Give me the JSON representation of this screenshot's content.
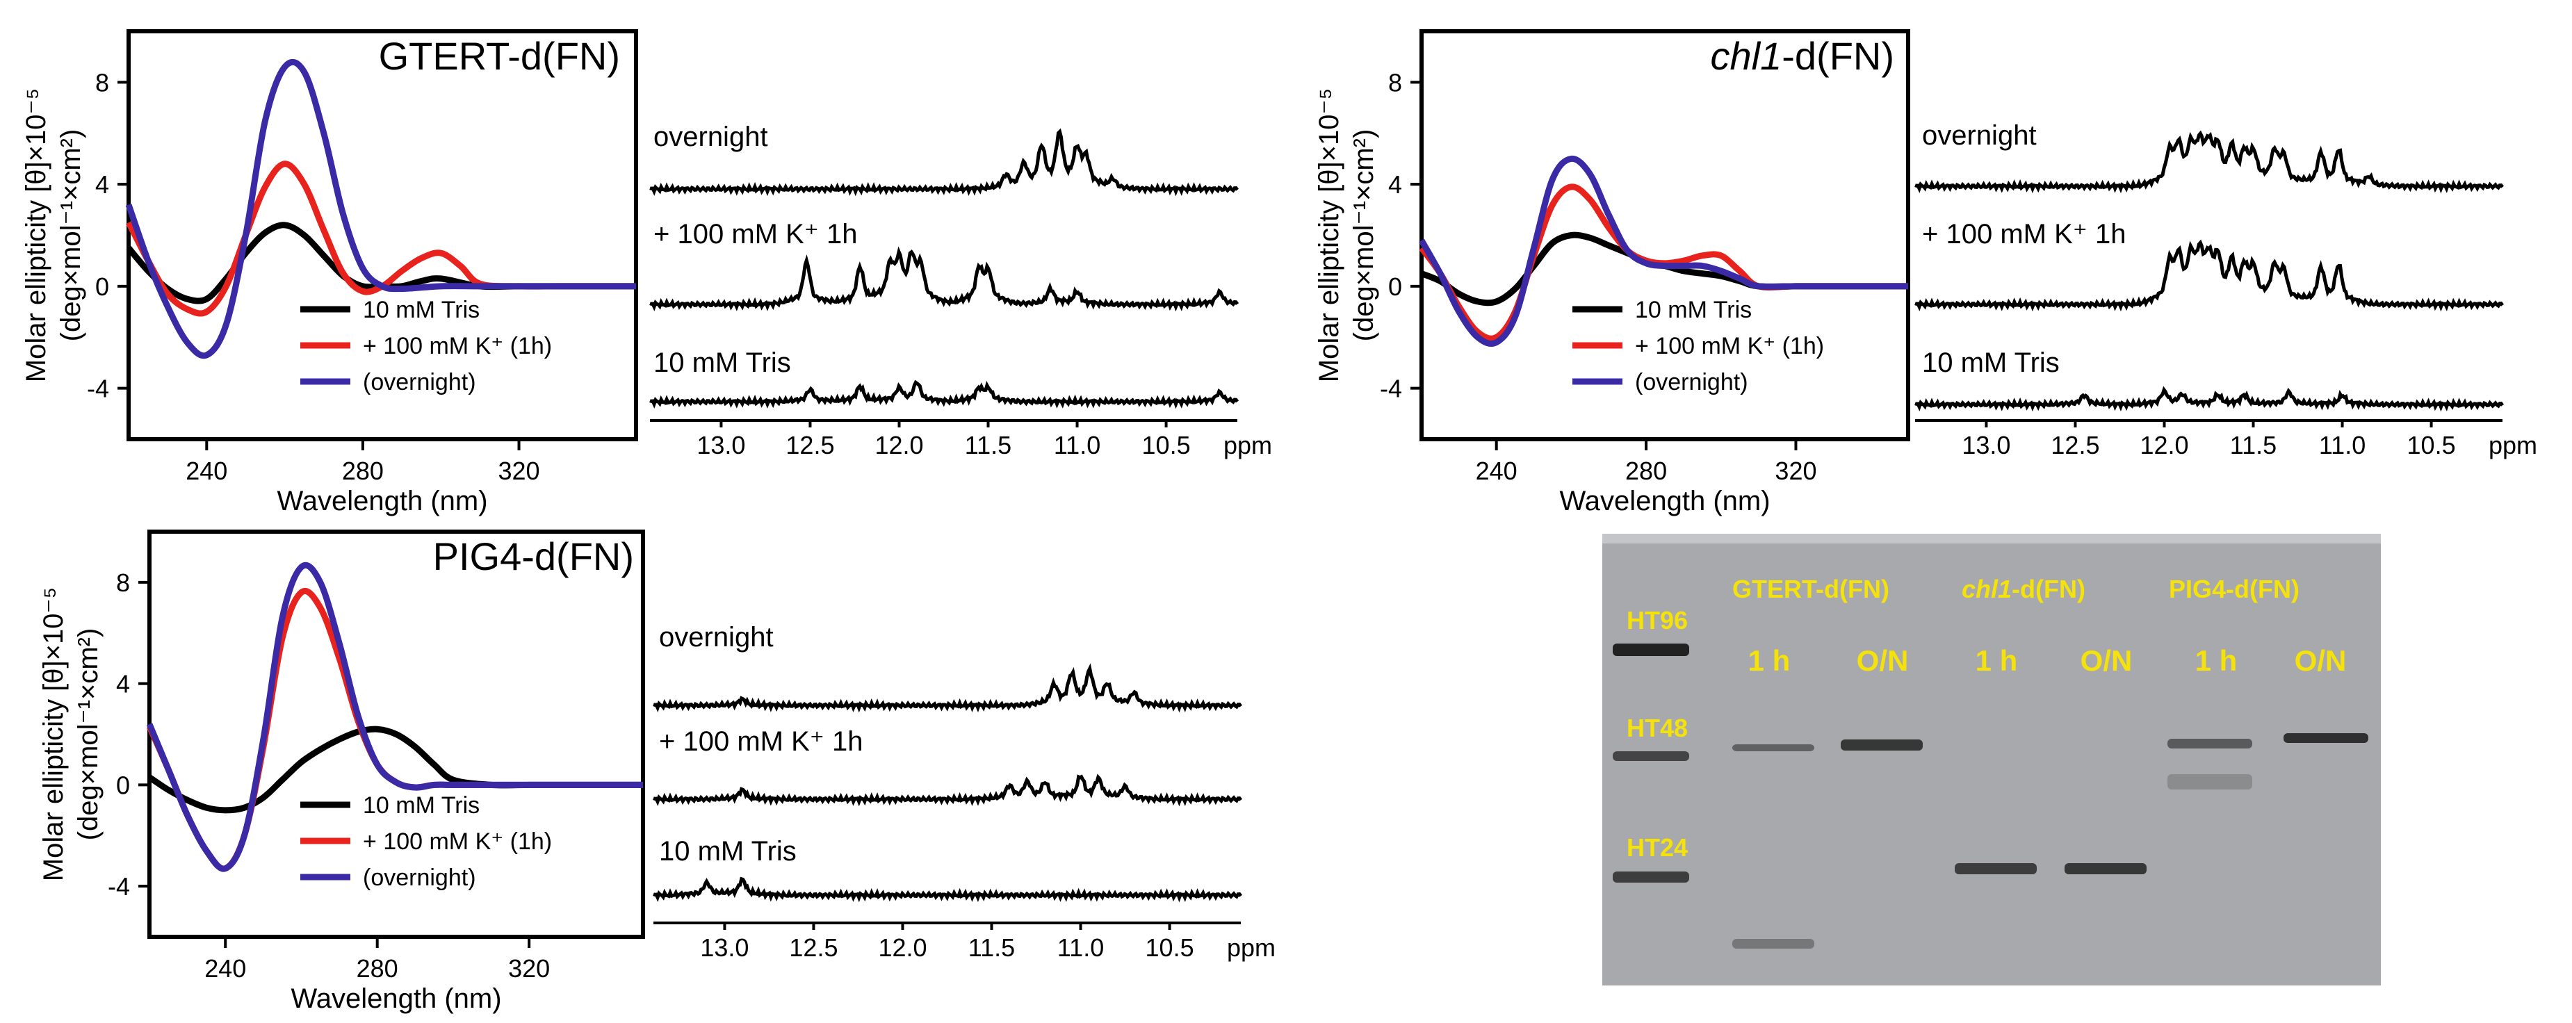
{
  "chart_data": [
    {
      "type": "line",
      "panel": "cd-1",
      "title": "GTERT-d(FN)",
      "xlabel": "Wavelength (nm)",
      "ylabel": "Molar ellipticity [θ]×10⁻⁵",
      "ylabel2": "(deg×mol⁻¹×cm²)",
      "xlim": [
        220,
        350
      ],
      "ylim": [
        -6,
        10
      ],
      "xticks": [
        "240",
        "280",
        "320"
      ],
      "yticks": [
        "8",
        "4",
        "0",
        "-4"
      ],
      "legend": [
        "10 mM Tris",
        "+ 100 mM K⁺ (1h)",
        "(overnight)"
      ],
      "series": [
        {
          "name": "10 mM Tris",
          "color": "#000000",
          "x": [
            220,
            225,
            230,
            235,
            240,
            245,
            250,
            255,
            260,
            265,
            270,
            275,
            280,
            285,
            290,
            295,
            300,
            310,
            320,
            330,
            340,
            350
          ],
          "y": [
            1.5,
            0.6,
            -0.1,
            -0.5,
            -0.5,
            0.3,
            1.3,
            2.1,
            2.4,
            2.0,
            1.2,
            0.4,
            0.0,
            0.0,
            0.0,
            0.2,
            0.3,
            0.0,
            0.0,
            0.0,
            0.0,
            0.0
          ]
        },
        {
          "name": "+ 100 mM K⁺ (1h)",
          "color": "#e8231e",
          "x": [
            220,
            225,
            230,
            235,
            240,
            245,
            250,
            255,
            260,
            265,
            270,
            275,
            280,
            285,
            290,
            295,
            300,
            305,
            310,
            320,
            330,
            340,
            350
          ],
          "y": [
            2.5,
            1.0,
            -0.3,
            -0.9,
            -1.0,
            0.0,
            2.0,
            3.9,
            4.8,
            4.0,
            2.2,
            0.5,
            -0.2,
            0.0,
            0.6,
            1.1,
            1.3,
            0.8,
            0.1,
            0.0,
            0.0,
            0.0,
            0.0
          ]
        },
        {
          "name": "(overnight)",
          "color": "#3a2aa6",
          "x": [
            220,
            225,
            230,
            235,
            240,
            245,
            250,
            255,
            260,
            265,
            270,
            275,
            280,
            285,
            290,
            300,
            310,
            320,
            330,
            340,
            350
          ],
          "y": [
            3.2,
            1.0,
            -0.8,
            -2.2,
            -2.7,
            -1.5,
            2.0,
            6.5,
            8.6,
            8.4,
            6.0,
            2.8,
            0.7,
            0.0,
            -0.1,
            0.0,
            0.0,
            0.0,
            0.0,
            0.0,
            0.0
          ]
        }
      ]
    },
    {
      "type": "line",
      "panel": "nmr-1",
      "xlabel": "ppm",
      "xticks": [
        "13.0",
        "12.5",
        "12.0",
        "11.5",
        "11.0",
        "10.5"
      ],
      "traces": [
        {
          "label": "overnight",
          "peaks": [
            [
              11.1,
              0.8
            ],
            [
              11.2,
              0.6
            ],
            [
              11.0,
              0.55
            ],
            [
              11.3,
              0.35
            ],
            [
              10.95,
              0.45
            ],
            [
              11.4,
              0.2
            ],
            [
              10.8,
              0.15
            ]
          ]
        },
        {
          "label": "+ 100 mM K⁺ 1h",
          "peaks": [
            [
              12.52,
              0.7
            ],
            [
              12.22,
              0.6
            ],
            [
              12.05,
              0.55
            ],
            [
              12.0,
              0.6
            ],
            [
              11.93,
              0.65
            ],
            [
              11.88,
              0.55
            ],
            [
              11.55,
              0.55
            ],
            [
              11.5,
              0.5
            ],
            [
              11.15,
              0.25
            ],
            [
              11.0,
              0.2
            ],
            [
              10.2,
              0.2
            ]
          ]
        },
        {
          "label": "10 mM Tris",
          "peaks": [
            [
              12.5,
              0.2
            ],
            [
              12.22,
              0.25
            ],
            [
              12.0,
              0.2
            ],
            [
              11.9,
              0.3
            ],
            [
              11.55,
              0.2
            ],
            [
              11.5,
              0.2
            ],
            [
              10.2,
              0.15
            ]
          ]
        }
      ]
    },
    {
      "type": "line",
      "panel": "cd-2",
      "title_italic": "chl1",
      "title_rest": "-d(FN)",
      "xlabel": "Wavelength (nm)",
      "ylabel": "Molar ellipticity [θ]×10⁻⁵",
      "ylabel2": "(deg×mol⁻¹×cm²)",
      "xlim": [
        220,
        350
      ],
      "ylim": [
        -6,
        10
      ],
      "xticks": [
        "240",
        "280",
        "320"
      ],
      "yticks": [
        "8",
        "4",
        "0",
        "-4"
      ],
      "legend": [
        "10 mM Tris",
        "+ 100 mM K⁺ (1h)",
        "(overnight)"
      ],
      "series": [
        {
          "name": "10 mM Tris",
          "color": "#000000",
          "x": [
            220,
            225,
            230,
            235,
            240,
            245,
            250,
            255,
            260,
            265,
            270,
            275,
            280,
            285,
            290,
            295,
            300,
            305,
            310,
            320,
            330,
            340,
            350
          ],
          "y": [
            0.5,
            0.2,
            -0.3,
            -0.6,
            -0.6,
            -0.1,
            0.8,
            1.7,
            2.0,
            1.9,
            1.6,
            1.3,
            1.0,
            0.8,
            0.6,
            0.5,
            0.4,
            0.2,
            0.0,
            0.0,
            0.0,
            0.0,
            0.0
          ]
        },
        {
          "name": "+ 100 mM K⁺ (1h)",
          "color": "#e8231e",
          "x": [
            220,
            225,
            230,
            235,
            240,
            245,
            250,
            255,
            260,
            265,
            270,
            275,
            280,
            285,
            290,
            295,
            300,
            305,
            310,
            320,
            330,
            340,
            350
          ],
          "y": [
            1.5,
            0.5,
            -0.8,
            -1.8,
            -2.0,
            -1.0,
            1.2,
            3.2,
            3.9,
            3.4,
            2.3,
            1.4,
            1.0,
            0.9,
            1.0,
            1.2,
            1.2,
            0.6,
            0.0,
            0.0,
            0.0,
            0.0,
            0.0
          ]
        },
        {
          "name": "(overnight)",
          "color": "#3a2aa6",
          "x": [
            220,
            225,
            230,
            235,
            240,
            245,
            250,
            255,
            260,
            265,
            270,
            275,
            280,
            285,
            290,
            295,
            300,
            305,
            310,
            320,
            330,
            340,
            350
          ],
          "y": [
            1.8,
            0.5,
            -1.0,
            -2.0,
            -2.2,
            -1.2,
            1.5,
            4.2,
            5.0,
            4.4,
            2.8,
            1.4,
            0.9,
            0.8,
            0.8,
            0.8,
            0.6,
            0.3,
            0.0,
            0.0,
            0.0,
            0.0,
            0.0
          ]
        }
      ]
    },
    {
      "type": "line",
      "panel": "nmr-2",
      "xlabel": "ppm",
      "xticks": [
        "13.0",
        "12.5",
        "12.0",
        "11.5",
        "11.0",
        "10.5"
      ],
      "traces": [
        {
          "label": "overnight",
          "peaks": [
            [
              11.97,
              0.5
            ],
            [
              11.92,
              0.55
            ],
            [
              11.85,
              0.5
            ],
            [
              11.8,
              0.55
            ],
            [
              11.75,
              0.55
            ],
            [
              11.7,
              0.5
            ],
            [
              11.62,
              0.5
            ],
            [
              11.55,
              0.45
            ],
            [
              11.5,
              0.45
            ],
            [
              11.38,
              0.5
            ],
            [
              11.33,
              0.45
            ],
            [
              11.12,
              0.5
            ],
            [
              11.02,
              0.55
            ],
            [
              10.85,
              0.15
            ]
          ]
        },
        {
          "label": "+ 100 mM K⁺ 1h",
          "peaks": [
            [
              11.97,
              0.6
            ],
            [
              11.92,
              0.65
            ],
            [
              11.85,
              0.6
            ],
            [
              11.8,
              0.65
            ],
            [
              11.75,
              0.6
            ],
            [
              11.7,
              0.6
            ],
            [
              11.62,
              0.55
            ],
            [
              11.55,
              0.5
            ],
            [
              11.5,
              0.5
            ],
            [
              11.38,
              0.55
            ],
            [
              11.33,
              0.5
            ],
            [
              11.12,
              0.55
            ],
            [
              11.02,
              0.6
            ]
          ]
        },
        {
          "label": "10 mM Tris",
          "peaks": [
            [
              12.45,
              0.15
            ],
            [
              12.0,
              0.2
            ],
            [
              11.9,
              0.15
            ],
            [
              11.7,
              0.15
            ],
            [
              11.55,
              0.15
            ],
            [
              11.3,
              0.2
            ],
            [
              11.0,
              0.15
            ]
          ]
        }
      ]
    },
    {
      "type": "line",
      "panel": "cd-3",
      "title": "PIG4-d(FN)",
      "xlabel": "Wavelength (nm)",
      "ylabel": "Molar ellipticity [θ]×10⁻⁵",
      "ylabel2": "(deg×mol⁻¹×cm²)",
      "xlim": [
        220,
        350
      ],
      "ylim": [
        -6,
        10
      ],
      "xticks": [
        "240",
        "280",
        "320"
      ],
      "yticks": [
        "8",
        "4",
        "0",
        "-4"
      ],
      "legend": [
        "10 mM Tris",
        "+ 100 mM K⁺ (1h)",
        "(overnight)"
      ],
      "series": [
        {
          "name": "10 mM Tris",
          "color": "#000000",
          "x": [
            220,
            225,
            230,
            235,
            240,
            245,
            250,
            255,
            260,
            265,
            270,
            275,
            280,
            285,
            290,
            295,
            300,
            310,
            320,
            330,
            340,
            350
          ],
          "y": [
            0.3,
            -0.2,
            -0.6,
            -0.9,
            -1.0,
            -0.9,
            -0.5,
            0.2,
            0.9,
            1.4,
            1.8,
            2.1,
            2.2,
            2.0,
            1.5,
            0.8,
            0.2,
            0.0,
            0.0,
            0.0,
            0.0,
            0.0
          ]
        },
        {
          "name": "+ 100 mM K⁺ (1h)",
          "color": "#e8231e",
          "x": [
            220,
            225,
            230,
            235,
            240,
            245,
            250,
            255,
            260,
            265,
            270,
            275,
            280,
            285,
            290,
            295,
            300,
            310,
            320,
            330,
            340,
            350
          ],
          "y": [
            2.3,
            0.6,
            -1.2,
            -2.6,
            -3.3,
            -2.0,
            1.5,
            5.8,
            7.6,
            7.0,
            5.0,
            2.5,
            0.8,
            0.1,
            -0.1,
            0.0,
            0.0,
            0.0,
            0.0,
            0.0,
            0.0,
            0.0
          ]
        },
        {
          "name": "(overnight)",
          "color": "#3a2aa6",
          "x": [
            220,
            225,
            230,
            235,
            240,
            245,
            250,
            255,
            260,
            265,
            270,
            275,
            280,
            285,
            290,
            295,
            300,
            310,
            320,
            330,
            340,
            350
          ],
          "y": [
            2.4,
            0.6,
            -1.2,
            -2.6,
            -3.3,
            -2.0,
            1.8,
            6.6,
            8.6,
            8.0,
            5.6,
            2.7,
            0.8,
            0.1,
            -0.1,
            0.0,
            0.0,
            0.0,
            0.0,
            0.0,
            0.0,
            0.0
          ]
        }
      ]
    },
    {
      "type": "line",
      "panel": "nmr-3",
      "xlabel": "ppm",
      "xticks": [
        "13.0",
        "12.5",
        "12.0",
        "11.5",
        "11.0",
        "10.5"
      ],
      "traces": [
        {
          "label": "overnight",
          "peaks": [
            [
              12.9,
              0.1
            ],
            [
              11.05,
              0.45
            ],
            [
              10.95,
              0.5
            ],
            [
              11.15,
              0.3
            ],
            [
              10.85,
              0.3
            ],
            [
              10.7,
              0.2
            ]
          ]
        },
        {
          "label": "+ 100 mM K⁺ 1h",
          "peaks": [
            [
              12.9,
              0.15
            ],
            [
              11.4,
              0.2
            ],
            [
              11.3,
              0.25
            ],
            [
              11.2,
              0.25
            ],
            [
              11.0,
              0.35
            ],
            [
              10.9,
              0.3
            ],
            [
              10.75,
              0.2
            ]
          ]
        },
        {
          "label": "10 mM Tris",
          "peaks": [
            [
              13.1,
              0.2
            ],
            [
              12.9,
              0.25
            ]
          ]
        }
      ]
    }
  ],
  "gel": {
    "background": "#a7a9ac",
    "marker_labels": [
      "HT96",
      "HT48",
      "HT24"
    ],
    "groups": [
      {
        "label": "GTERT-d(FN)"
      },
      {
        "label_italic": "chl1",
        "label_rest": "-d(FN)"
      },
      {
        "label": "PIG4-d(FN)"
      }
    ],
    "lanes": [
      "1 h",
      "O/N",
      "1 h",
      "O/N",
      "1 h",
      "O/N"
    ],
    "label_color": "#f5e20a"
  }
}
